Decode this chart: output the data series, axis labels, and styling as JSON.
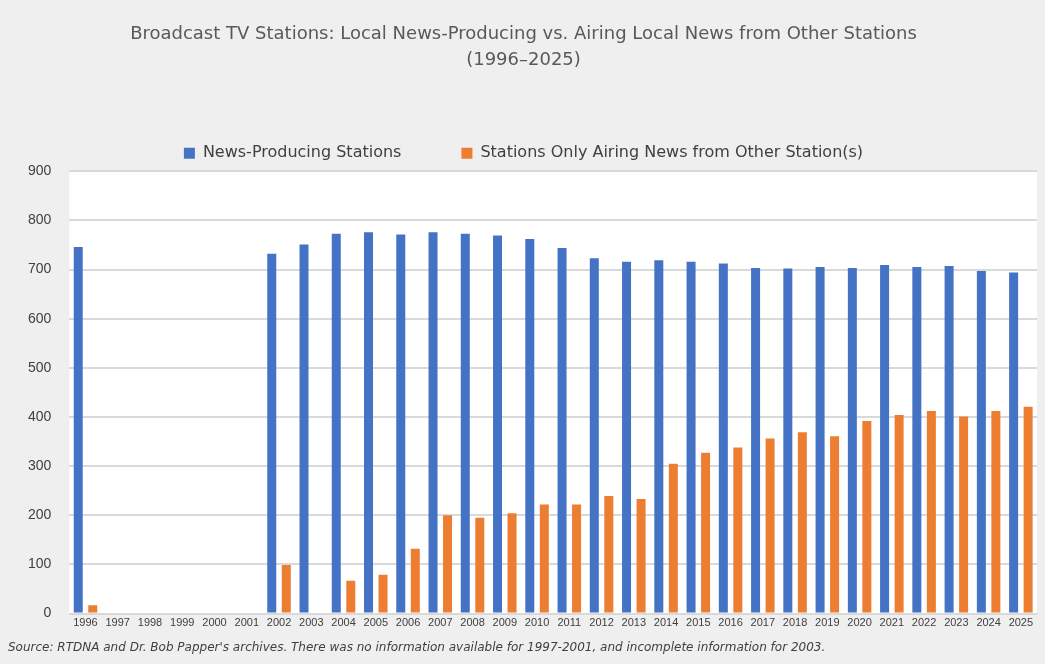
{
  "chart_data": {
    "type": "bar",
    "title": "Broadcast TV Stations: Local News-Producing vs. Airing Local News from Other Stations",
    "subtitle": "(1996–2025)",
    "categories": [
      "1996",
      "1997",
      "1998",
      "1999",
      "2000",
      "2001",
      "2002",
      "2003",
      "2004",
      "2005",
      "2006",
      "2007",
      "2008",
      "2009",
      "2010",
      "2011",
      "2012",
      "2013",
      "2014",
      "2015",
      "2016",
      "2017",
      "2018",
      "2019",
      "2020",
      "2021",
      "2022",
      "2023",
      "2024",
      "2025"
    ],
    "series": [
      {
        "name": "News-Producing Stations",
        "color": "#4472c4",
        "values": [
          746,
          null,
          null,
          null,
          null,
          null,
          732,
          751,
          773,
          776,
          771,
          776,
          773,
          769,
          762,
          744,
          723,
          716,
          719,
          716,
          712,
          703,
          702,
          705,
          703,
          709,
          705,
          707,
          697,
          694
        ]
      },
      {
        "name": "Stations Only Airing News from Other Station(s)",
        "color": "#ed7d31",
        "values": [
          17,
          null,
          null,
          null,
          null,
          null,
          99,
          null,
          67,
          79,
          132,
          200,
          195,
          204,
          222,
          222,
          239,
          233,
          305,
          327,
          338,
          356,
          369,
          361,
          392,
          404,
          412,
          401,
          412,
          421
        ]
      }
    ],
    "ylim": [
      0,
      900
    ],
    "yticks": [
      0,
      100,
      200,
      300,
      400,
      500,
      600,
      700,
      800,
      900
    ],
    "grid": "y",
    "legend": "top",
    "annotations": [
      "Source: RTDNA and Dr. Bob Papper's archives. There was no information available for 1997-2001, and incomplete information for 2003."
    ]
  }
}
